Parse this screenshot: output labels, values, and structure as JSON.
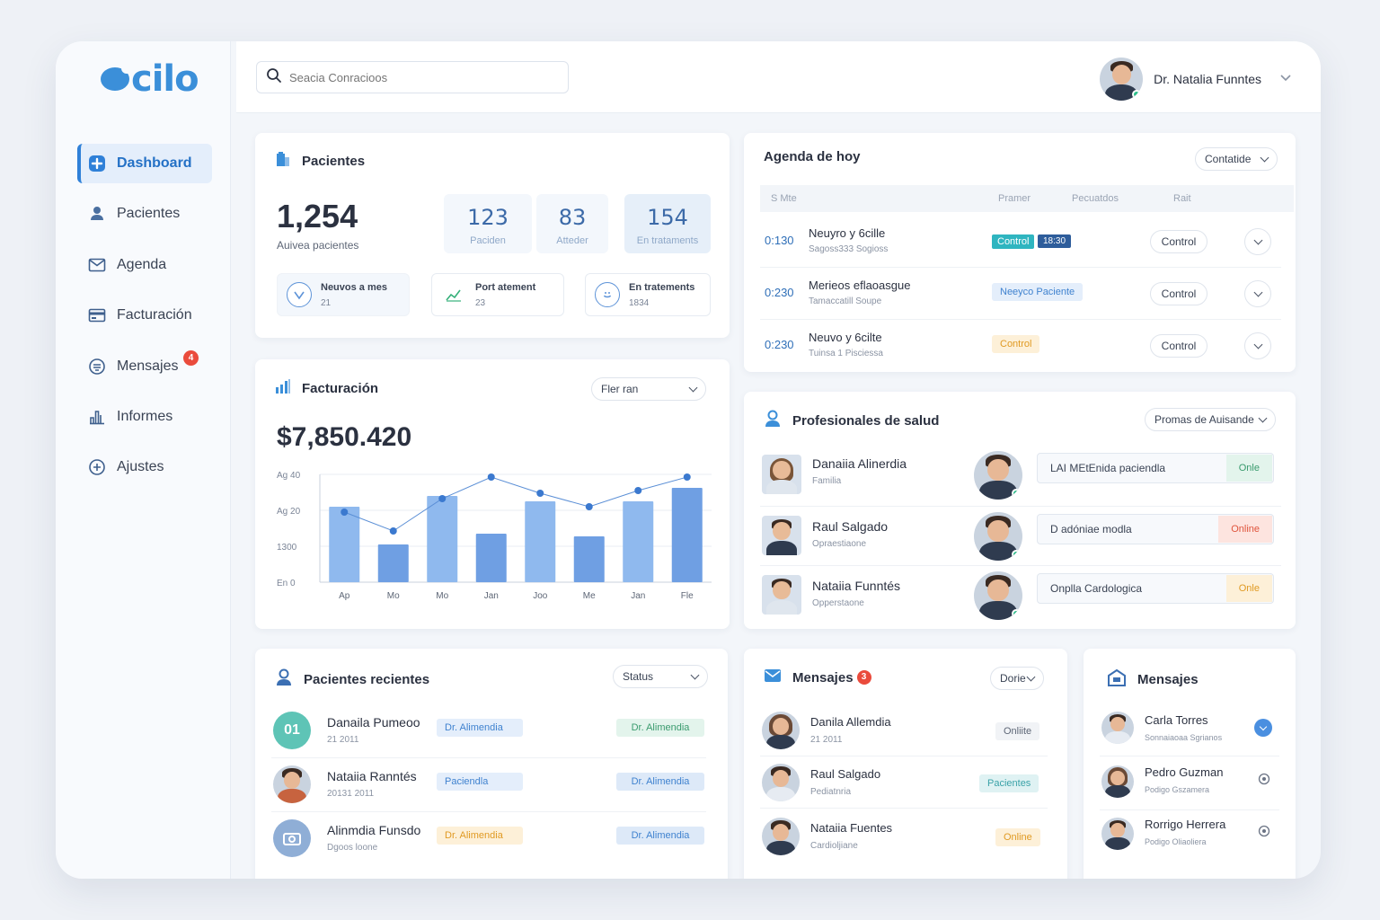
{
  "app": {
    "logo_text": "cilo",
    "brand_color": "#3b8fd9"
  },
  "search": {
    "placeholder": "Seacia Conracioos"
  },
  "user": {
    "name": "Dr. Natalia Funntes"
  },
  "sidebar": {
    "items": [
      {
        "label": "Dashboard",
        "icon": "plus-square-icon",
        "active": true
      },
      {
        "label": "Pacientes",
        "icon": "user-icon"
      },
      {
        "label": "Agenda",
        "icon": "mail-icon"
      },
      {
        "label": "Facturación",
        "icon": "card-icon"
      },
      {
        "label": "Mensajes",
        "icon": "chat-icon",
        "badge": "4"
      },
      {
        "label": "Informes",
        "icon": "chart-icon"
      },
      {
        "label": "Ajustes",
        "icon": "plus-circle-icon"
      }
    ]
  },
  "pacientes": {
    "title": "Pacientes",
    "total": "1,254",
    "total_label": "Auivea pacientes",
    "stats": [
      {
        "value": "123",
        "label": "Paciden"
      },
      {
        "value": "83",
        "label": "Atteder"
      },
      {
        "value": "154",
        "label": "En trataments"
      }
    ],
    "minis": [
      {
        "title": "Neuvos a mes",
        "value": "21"
      },
      {
        "title": "Port atement",
        "value": "23"
      },
      {
        "title": "En tratements",
        "value": "1834"
      }
    ]
  },
  "facturacion": {
    "title": "Facturación",
    "filter": "Fler ran",
    "total": "$7,850.420"
  },
  "chart_data": {
    "type": "bar",
    "categories": [
      "Ap",
      "Mo",
      "Mo",
      "Jan",
      "Joo",
      "Me",
      "Jan",
      "Fle"
    ],
    "y_tick_labels": [
      "Ag 40",
      "Ag 20",
      "1300",
      "En 0"
    ],
    "ylim": [
      0,
      40
    ],
    "series": [
      {
        "kind": "bar",
        "values": [
          28,
          14,
          32,
          18,
          30,
          17,
          30,
          35
        ]
      },
      {
        "kind": "line",
        "values": [
          26,
          19,
          31,
          39,
          33,
          28,
          34,
          39
        ]
      }
    ],
    "bar_color": "#8fb9ee",
    "line_color": "#5b8fd6"
  },
  "agenda": {
    "title": "Agenda de hoy",
    "filter": "Contatide",
    "columns": [
      "S Mte",
      "Pramer",
      "Pecuatdos",
      "Rait"
    ],
    "rows": [
      {
        "time": "0:130",
        "name": "Neuyro y 6cille",
        "sub": "Sagoss333 Sogioss",
        "tag": "Control",
        "tag2": "18:30",
        "action": "Control"
      },
      {
        "time": "0:230",
        "name": "Merieos eflaoasgue",
        "sub": "Tamaccatill Soupe",
        "tag": "Neeyco Paciente",
        "action": "Control"
      },
      {
        "time": "0:230",
        "name": "Neuvo y 6cilte",
        "sub": "Tuinsa 1 Pisciessa",
        "tag": "Control",
        "action": "Control"
      }
    ]
  },
  "profesionales": {
    "title": "Profesionales de salud",
    "filter": "Promas de Auisande",
    "rows": [
      {
        "name": "Danaiia Alinerdia",
        "role": "Familia",
        "field": "LAI MEtEnida paciendla",
        "status": "Onle"
      },
      {
        "name": "Raul Salgado",
        "role": "Opraestiaone",
        "field": "D adóniae modla",
        "status": "Online"
      },
      {
        "name": "Nataiia Funntés",
        "role": "Opperstaone",
        "field": "Onplla Cardologica",
        "status": "Onle"
      }
    ]
  },
  "recientes": {
    "title": "Pacientes recientes",
    "filter": "Status",
    "rows": [
      {
        "initials": "01",
        "name": "Danaila Pumeoo",
        "date": "21 2011",
        "tag1": "Dr. Alimendia",
        "tag2": "Dr. Alimendia"
      },
      {
        "name": "Nataiia Ranntés",
        "date": "20131 2011",
        "tag1": "Paciendla",
        "tag2": "Dr. Alimendia"
      },
      {
        "name": "Alinmdia Funsdo",
        "date": "Dgoos loone",
        "tag1": "Dr. Alimendia",
        "tag2": "Dr. Alimendia"
      }
    ]
  },
  "mensajes": {
    "title": "Mensajes",
    "badge": "3",
    "filter": "Dorie",
    "rows": [
      {
        "name": "Danila Allemdia",
        "sub": "21 2011",
        "status": "Onliite"
      },
      {
        "name": "Raul Salgado",
        "sub": "Pediatnria",
        "status": "Pacientes"
      },
      {
        "name": "Nataiia Fuentes",
        "sub": "Cardioljiane",
        "status": "Online"
      }
    ]
  },
  "mensajes2": {
    "title": "Mensajes",
    "rows": [
      {
        "name": "Carla Torres",
        "sub": "Sonnaiaoaa Sgrianos"
      },
      {
        "name": "Pedro Guzman",
        "sub": "Podigo Gszamera"
      },
      {
        "name": "Rorrigo Herrera",
        "sub": "Podigo Oliaoliera"
      }
    ]
  }
}
